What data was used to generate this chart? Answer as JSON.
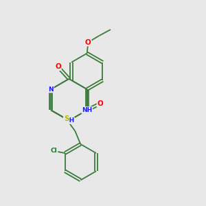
{
  "bg_color": "#e8e8e8",
  "bond_color": "#3a7a3a",
  "atom_colors": {
    "O": "#ff0000",
    "N": "#1a1aff",
    "S": "#b8b800",
    "Cl": "#008800",
    "C": "#3a7a3a"
  },
  "font_size": 6.5,
  "bond_width": 1.3,
  "dbo": 0.07
}
